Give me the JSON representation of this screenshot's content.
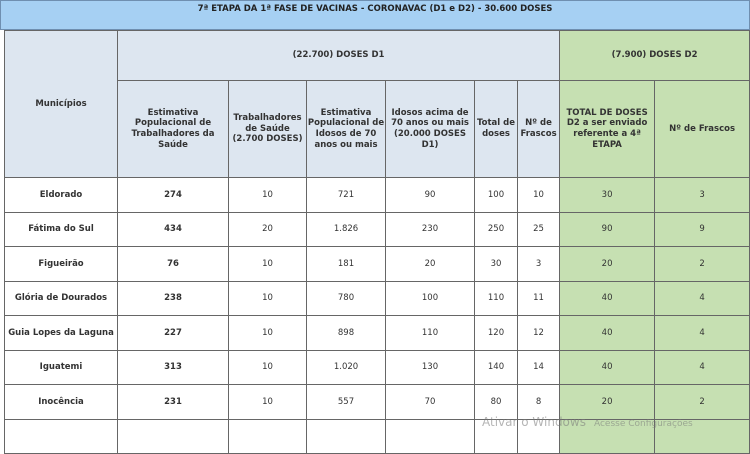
{
  "title": "7ª ETAPA DA 1ª FASE DE VACINAS - CORONAVAC (D1 e D2) - 30.600 DOSES",
  "headers": {
    "municipios": "Municípios",
    "d1_group": "(22.700) DOSES D1",
    "d2_group": "(7.900) DOSES D2",
    "columns": [
      "Estimativa Populacional de Trabalhadores da Saúde",
      "Trabalhadores de Saúde (2.700 DOSES)",
      "Estimativa Populacional de Idosos de 70 anos ou mais",
      "Idosos acima de 70 anos ou mais (20.000 DOSES D1)",
      "Total de doses",
      "Nº de Frascos",
      "TOTAL DE DOSES D2 a ser enviado referente a 4ª ETAPA",
      "Nº de Frascos"
    ]
  },
  "rows": [
    [
      "Eldorado",
      "274",
      "10",
      "721",
      "90",
      "100",
      "10",
      "30",
      "3"
    ],
    [
      "Fátima do Sul",
      "434",
      "20",
      "1.826",
      "230",
      "250",
      "25",
      "90",
      "9"
    ],
    [
      "Figueirão",
      "76",
      "10",
      "181",
      "20",
      "30",
      "3",
      "20",
      "2"
    ],
    [
      "Glória de Dourados",
      "238",
      "10",
      "780",
      "100",
      "110",
      "11",
      "40",
      "4"
    ],
    [
      "Guia Lopes da Laguna",
      "227",
      "10",
      "898",
      "110",
      "120",
      "12",
      "40",
      "4"
    ],
    [
      "Iguatemi",
      "313",
      "10",
      "1.020",
      "130",
      "140",
      "14",
      "40",
      "4"
    ],
    [
      "Inocência",
      "231",
      "10",
      "557",
      "70",
      "80",
      "8",
      "20",
      "2"
    ]
  ],
  "watermark": {
    "line1": "Ativar o Windows",
    "line2": "Acesse Configurações"
  }
}
